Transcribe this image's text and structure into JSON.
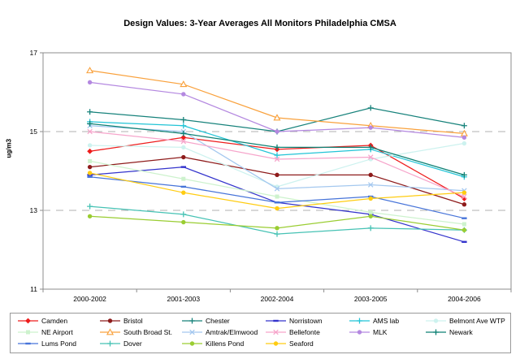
{
  "title": "Design Values: 3-Year Averages All Monitors Philadelphia CMSA",
  "chart_data": {
    "type": "line",
    "title": "Design Values: 3-Year Averages All Monitors Philadelphia CMSA",
    "xlabel": "",
    "ylabel": "ug/m3",
    "ylim": [
      11,
      17
    ],
    "yticks": [
      17,
      15,
      13,
      11
    ],
    "gridlines_at": [
      15,
      13
    ],
    "grid": "dashed-horizontal",
    "legend_position": "bottom",
    "categories": [
      "2000-2002",
      "2001-2003",
      "2002-2004",
      "2003-2005",
      "2004-2006"
    ],
    "series": [
      {
        "name": "Camden",
        "color": "#ee1c1c",
        "marker": "diamond",
        "values": [
          14.5,
          14.85,
          14.55,
          14.65,
          13.3
        ]
      },
      {
        "name": "Bristol",
        "color": "#8e1b1b",
        "marker": "circle",
        "values": [
          14.1,
          14.35,
          13.9,
          13.9,
          13.15
        ]
      },
      {
        "name": "Chester",
        "color": "#17827b",
        "marker": "plus",
        "values": [
          15.5,
          15.3,
          15.0,
          15.6,
          15.15
        ]
      },
      {
        "name": "Norristown",
        "color": "#3333cc",
        "marker": "dash",
        "values": [
          13.9,
          14.1,
          13.2,
          12.9,
          12.2
        ]
      },
      {
        "name": "AMS lab",
        "color": "#22c4d6",
        "marker": "plus",
        "values": [
          15.25,
          15.15,
          14.4,
          14.55,
          13.85
        ]
      },
      {
        "name": "Belmont Ave WTP",
        "color": "#cdf2ef",
        "marker": "circle",
        "values": [
          14.65,
          14.6,
          13.6,
          14.3,
          14.7
        ]
      },
      {
        "name": "NE Airport",
        "color": "#cdf2cd",
        "marker": "square",
        "values": [
          14.25,
          13.8,
          13.35,
          12.95,
          12.65
        ]
      },
      {
        "name": "South Broad St.",
        "color": "#f9a13c",
        "marker": "triangle",
        "values": [
          16.55,
          16.2,
          15.35,
          15.15,
          14.95
        ]
      },
      {
        "name": "Amtrak/Elmwood",
        "color": "#a4c8ef",
        "marker": "x",
        "values": [
          15.15,
          15.0,
          13.55,
          13.65,
          13.5
        ]
      },
      {
        "name": "Bellefonte",
        "color": "#f6a5cb",
        "marker": "x",
        "values": [
          15.0,
          14.75,
          14.3,
          14.35,
          13.35
        ]
      },
      {
        "name": "MLK",
        "color": "#b488e0",
        "marker": "circle",
        "values": [
          16.25,
          15.95,
          15.0,
          15.1,
          14.85
        ]
      },
      {
        "name": "Newark",
        "color": "#0e8174",
        "marker": "plus",
        "values": [
          15.2,
          14.95,
          14.6,
          14.6,
          13.9
        ]
      },
      {
        "name": "Lums Pond",
        "color": "#4774d9",
        "marker": "dash",
        "values": [
          13.85,
          13.6,
          13.2,
          13.35,
          12.8
        ]
      },
      {
        "name": "Dover",
        "color": "#46c2b4",
        "marker": "plus",
        "values": [
          13.1,
          12.9,
          12.4,
          12.55,
          12.5
        ]
      },
      {
        "name": "Killens Pond",
        "color": "#9acd32",
        "marker": "circle",
        "values": [
          12.85,
          12.7,
          12.55,
          12.85,
          12.5
        ]
      },
      {
        "name": "Seaford",
        "color": "#ffcc11",
        "marker": "circle",
        "values": [
          13.95,
          13.45,
          13.05,
          13.3,
          13.45
        ]
      }
    ]
  }
}
